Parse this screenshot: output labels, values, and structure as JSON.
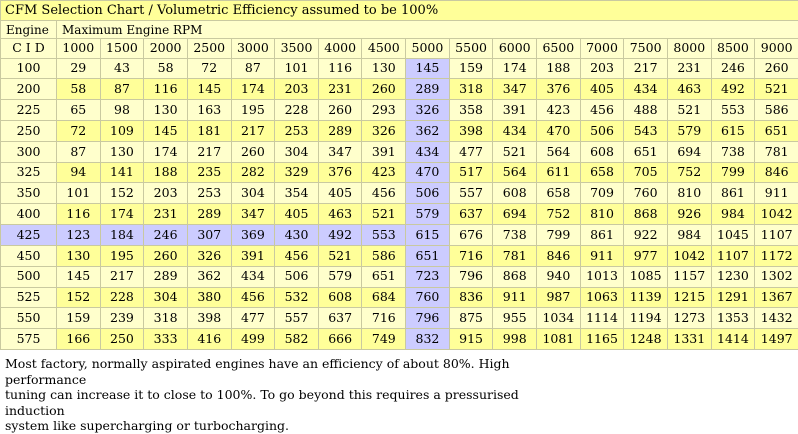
{
  "title": "CFM Selection Chart / Volumetric Efficiency assumed to be 100%",
  "engine_label": "Engine",
  "rpm_label": "Maximum Engine RPM",
  "cid_label": "C I D",
  "highlight_rpm": "5000",
  "highlight_cid": "425",
  "rpms": [
    "1000",
    "1500",
    "2000",
    "2500",
    "3000",
    "3500",
    "4000",
    "4500",
    "5000",
    "5500",
    "6000",
    "6500",
    "7000",
    "7500",
    "8000",
    "8500",
    "9000"
  ],
  "rows": [
    {
      "cid": "100",
      "values": [
        "29",
        "43",
        "58",
        "72",
        "87",
        "101",
        "116",
        "130",
        "145",
        "159",
        "174",
        "188",
        "203",
        "217",
        "231",
        "246",
        "260"
      ]
    },
    {
      "cid": "200",
      "values": [
        "58",
        "87",
        "116",
        "145",
        "174",
        "203",
        "231",
        "260",
        "289",
        "318",
        "347",
        "376",
        "405",
        "434",
        "463",
        "492",
        "521"
      ]
    },
    {
      "cid": "225",
      "values": [
        "65",
        "98",
        "130",
        "163",
        "195",
        "228",
        "260",
        "293",
        "326",
        "358",
        "391",
        "423",
        "456",
        "488",
        "521",
        "553",
        "586"
      ]
    },
    {
      "cid": "250",
      "values": [
        "72",
        "109",
        "145",
        "181",
        "217",
        "253",
        "289",
        "326",
        "362",
        "398",
        "434",
        "470",
        "506",
        "543",
        "579",
        "615",
        "651"
      ]
    },
    {
      "cid": "300",
      "values": [
        "87",
        "130",
        "174",
        "217",
        "260",
        "304",
        "347",
        "391",
        "434",
        "477",
        "521",
        "564",
        "608",
        "651",
        "694",
        "738",
        "781"
      ]
    },
    {
      "cid": "325",
      "values": [
        "94",
        "141",
        "188",
        "235",
        "282",
        "329",
        "376",
        "423",
        "470",
        "517",
        "564",
        "611",
        "658",
        "705",
        "752",
        "799",
        "846"
      ]
    },
    {
      "cid": "350",
      "values": [
        "101",
        "152",
        "203",
        "253",
        "304",
        "354",
        "405",
        "456",
        "506",
        "557",
        "608",
        "658",
        "709",
        "760",
        "810",
        "861",
        "911"
      ]
    },
    {
      "cid": "400",
      "values": [
        "116",
        "174",
        "231",
        "289",
        "347",
        "405",
        "463",
        "521",
        "579",
        "637",
        "694",
        "752",
        "810",
        "868",
        "926",
        "984",
        "1042"
      ]
    },
    {
      "cid": "425",
      "values": [
        "123",
        "184",
        "246",
        "307",
        "369",
        "430",
        "492",
        "553",
        "615",
        "676",
        "738",
        "799",
        "861",
        "922",
        "984",
        "1045",
        "1107"
      ]
    },
    {
      "cid": "450",
      "values": [
        "130",
        "195",
        "260",
        "326",
        "391",
        "456",
        "521",
        "586",
        "651",
        "716",
        "781",
        "846",
        "911",
        "977",
        "1042",
        "1107",
        "1172"
      ]
    },
    {
      "cid": "500",
      "values": [
        "145",
        "217",
        "289",
        "362",
        "434",
        "506",
        "579",
        "651",
        "723",
        "796",
        "868",
        "940",
        "1013",
        "1085",
        "1157",
        "1230",
        "1302"
      ]
    },
    {
      "cid": "525",
      "values": [
        "152",
        "228",
        "304",
        "380",
        "456",
        "532",
        "608",
        "684",
        "760",
        "836",
        "911",
        "987",
        "1063",
        "1139",
        "1215",
        "1291",
        "1367"
      ]
    },
    {
      "cid": "550",
      "values": [
        "159",
        "239",
        "318",
        "398",
        "477",
        "557",
        "637",
        "716",
        "796",
        "875",
        "955",
        "1034",
        "1114",
        "1194",
        "1273",
        "1353",
        "1432"
      ]
    },
    {
      "cid": "575",
      "values": [
        "166",
        "250",
        "333",
        "416",
        "499",
        "582",
        "666",
        "749",
        "832",
        "915",
        "998",
        "1081",
        "1165",
        "1248",
        "1331",
        "1414",
        "1497"
      ]
    }
  ],
  "note_lines": [
    "Most factory, normally aspirated engines have an efficiency of about 80%. High performance",
    "tuning can increase it to close to 100%. To go beyond this requires a pressurised induction",
    "system like supercharging or turbocharging."
  ]
}
